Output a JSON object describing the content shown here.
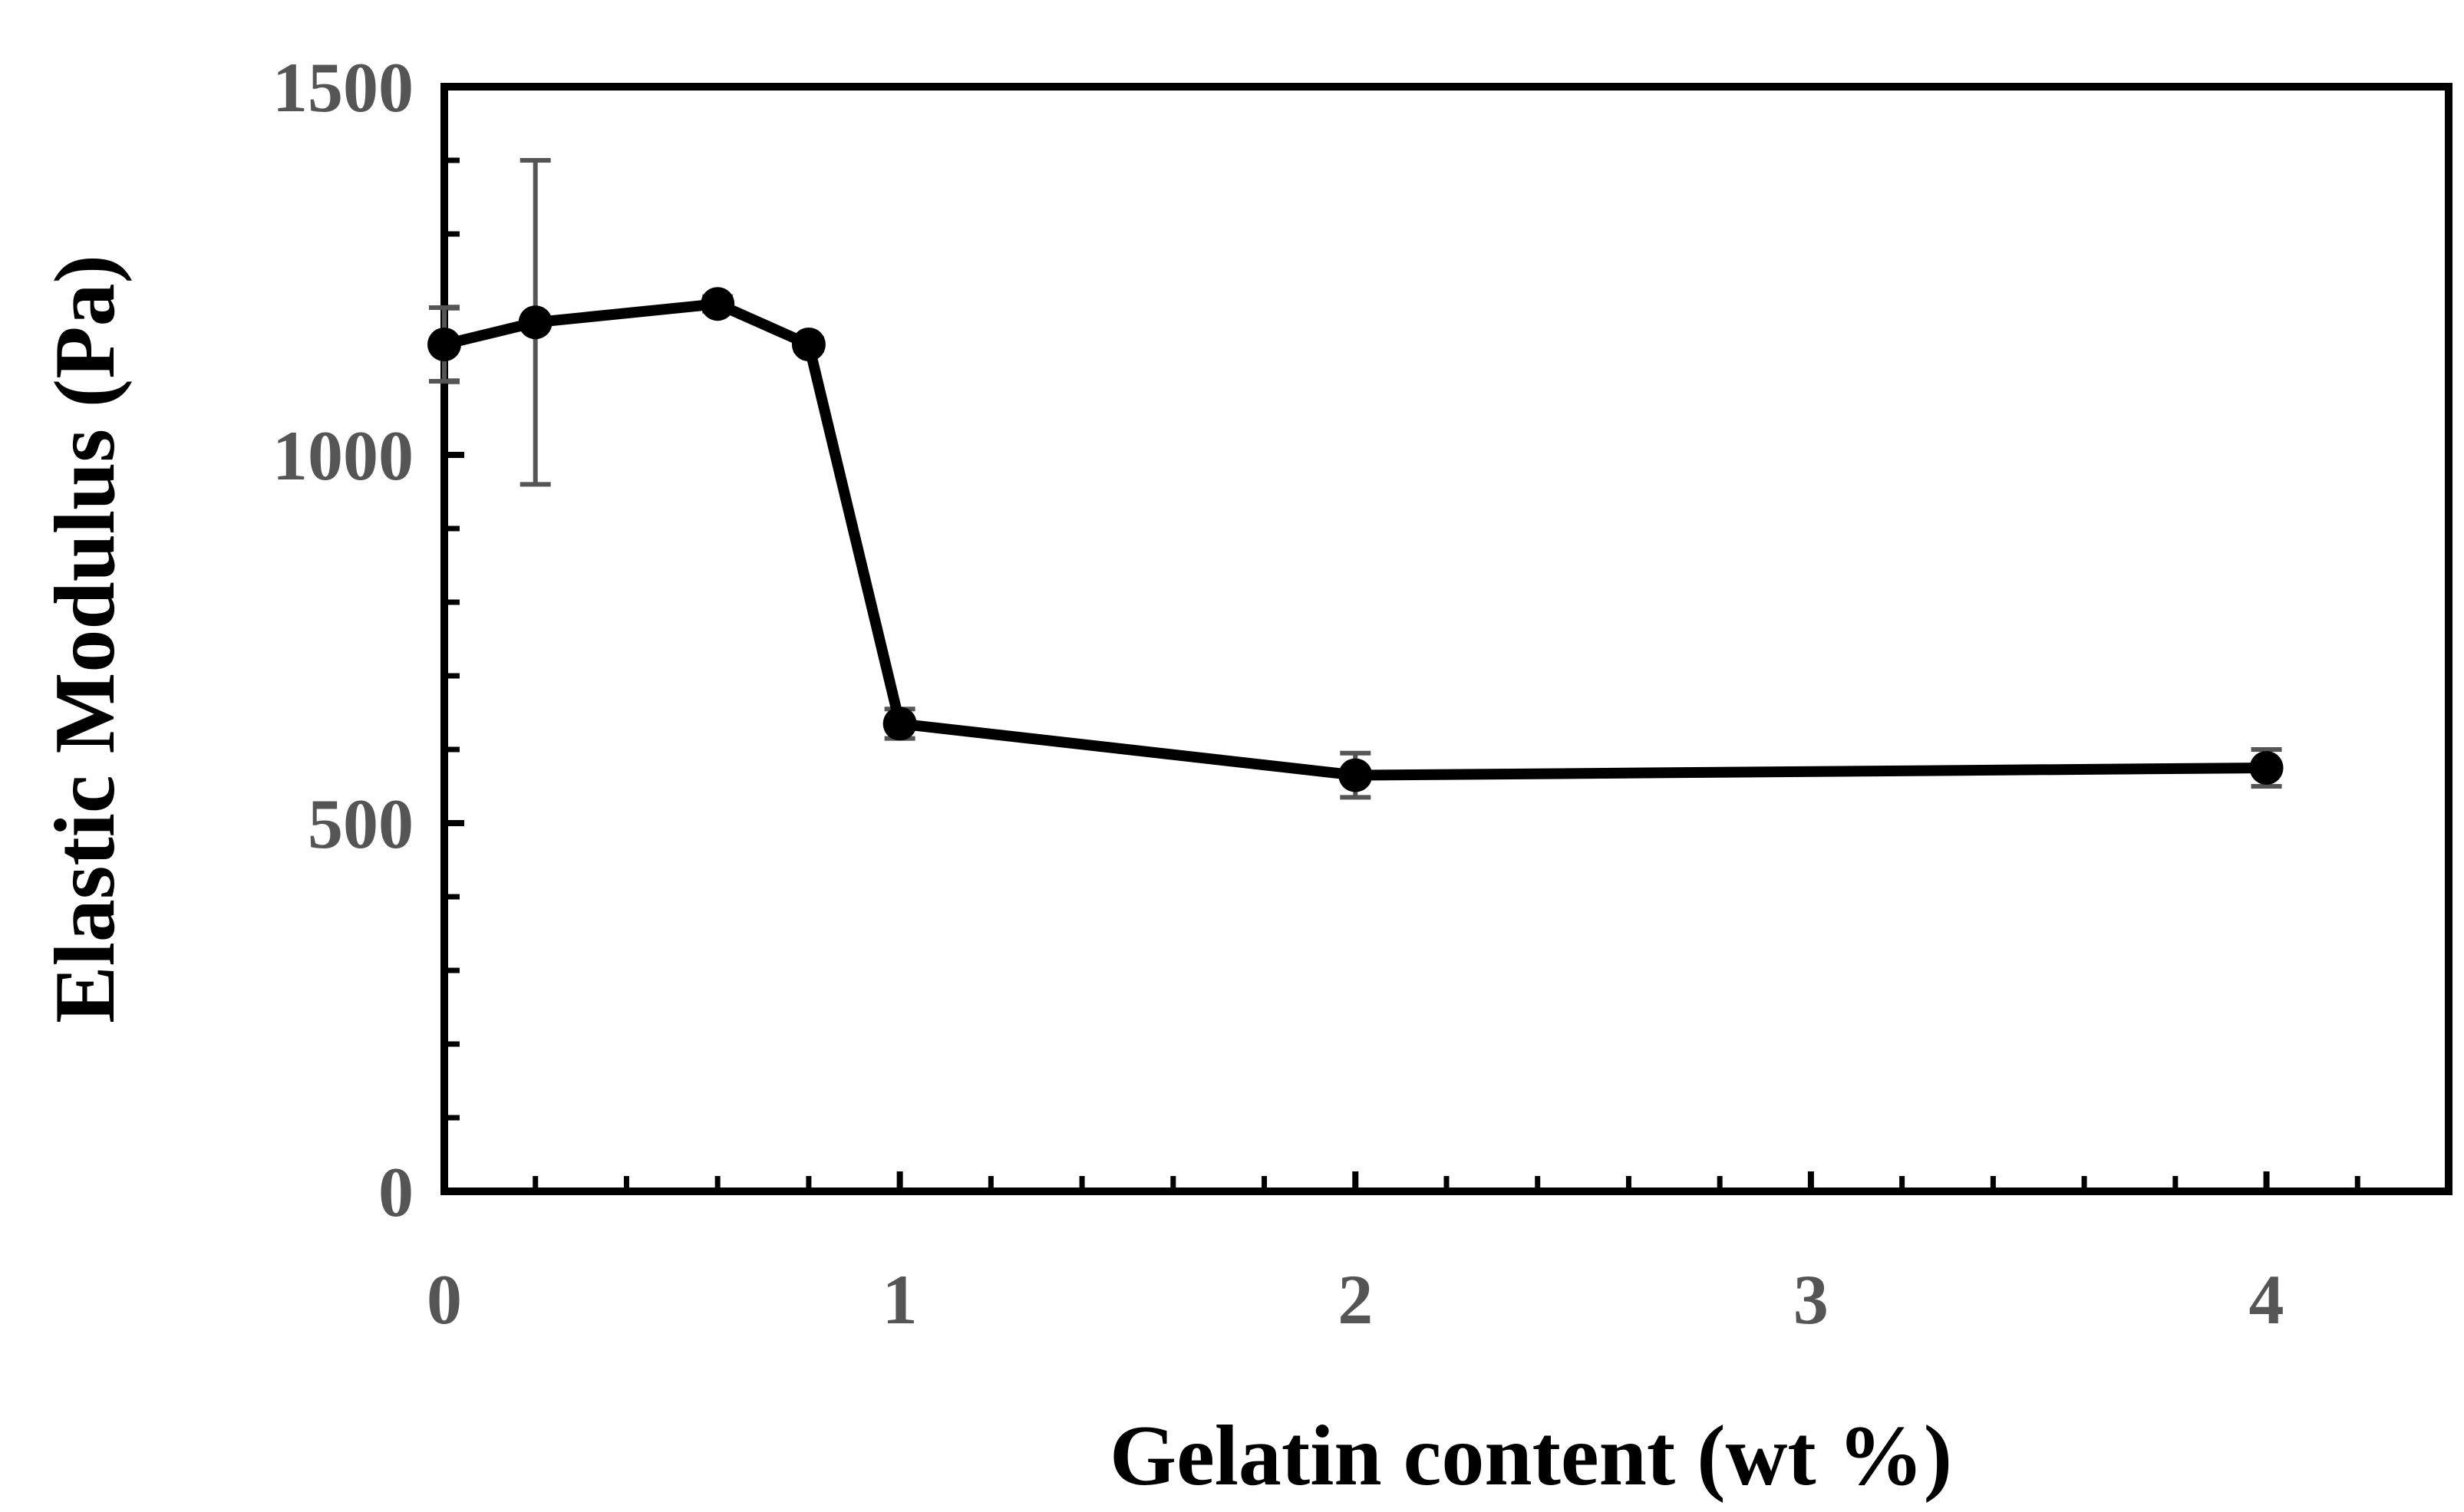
{
  "chart_data": {
    "type": "line",
    "x_label": "Gelatin content (wt %)",
    "y_label": "Elastic Modulus (Pa)",
    "x": [
      0,
      0.2,
      0.6,
      0.8,
      1,
      2,
      4
    ],
    "series": [
      {
        "color": "#000000",
        "error_color": "#555555",
        "values": [
          1150,
          1180,
          1205,
          1150,
          635,
          565,
          575
        ],
        "errors": [
          50,
          220,
          10,
          8,
          20,
          30,
          25
        ]
      }
    ],
    "xlim": [
      0,
      4.4
    ],
    "xticks": [
      0,
      1,
      2,
      3,
      4
    ],
    "xminorticks": [
      0.2,
      0.4,
      0.6,
      0.8,
      1.2,
      1.4,
      1.6,
      1.8,
      2.2,
      2.4,
      2.6,
      2.8,
      3.2,
      3.4,
      3.6,
      3.8,
      4.2
    ],
    "ylim": [
      0,
      1500
    ],
    "yticks": [
      0,
      500,
      1000,
      1500
    ],
    "yminorticks": [
      100,
      200,
      300,
      400,
      600,
      700,
      800,
      900,
      1100,
      1200,
      1300,
      1400
    ],
    "grid": false
  }
}
